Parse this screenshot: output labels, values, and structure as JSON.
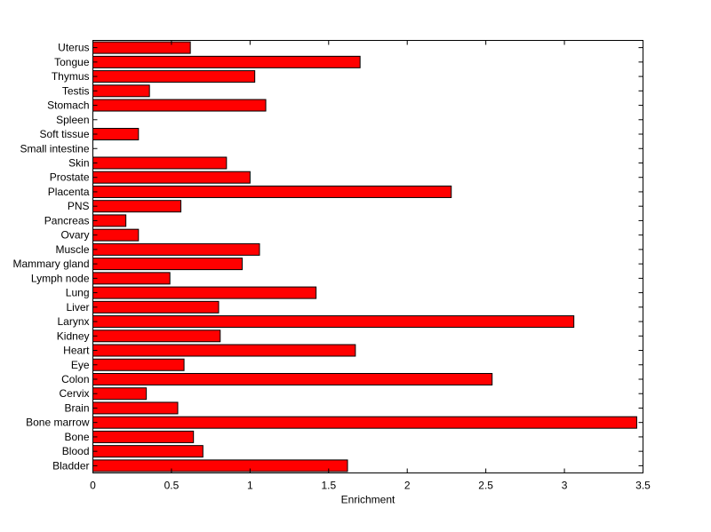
{
  "chart_data": {
    "type": "bar",
    "orientation": "horizontal",
    "title": "",
    "xlabel": "Enrichment",
    "ylabel": "",
    "xlim": [
      0,
      3.5
    ],
    "xticks": [
      "0",
      "0.5",
      "1",
      "1.5",
      "2",
      "2.5",
      "3",
      "3.5"
    ],
    "grid": false,
    "legend": "none",
    "bar_color": "#ff0000",
    "categories": [
      "Bladder",
      "Blood",
      "Bone",
      "Bone marrow",
      "Brain",
      "Cervix",
      "Colon",
      "Eye",
      "Heart",
      "Kidney",
      "Larynx",
      "Liver",
      "Lung",
      "Lymph node",
      "Mammary gland",
      "Muscle",
      "Ovary",
      "Pancreas",
      "PNS",
      "Placenta",
      "Prostate",
      "Skin",
      "Small intestine",
      "Soft tissue",
      "Spleen",
      "Stomach",
      "Testis",
      "Thymus",
      "Tongue",
      "Uterus"
    ],
    "values": [
      1.62,
      0.7,
      0.64,
      3.46,
      0.54,
      0.34,
      2.54,
      0.58,
      1.67,
      0.81,
      3.06,
      0.8,
      1.42,
      0.49,
      0.95,
      1.06,
      0.29,
      0.21,
      0.56,
      2.28,
      1.0,
      0.85,
      0.0,
      0.29,
      0.0,
      1.1,
      0.36,
      1.03,
      1.7,
      0.62
    ]
  }
}
